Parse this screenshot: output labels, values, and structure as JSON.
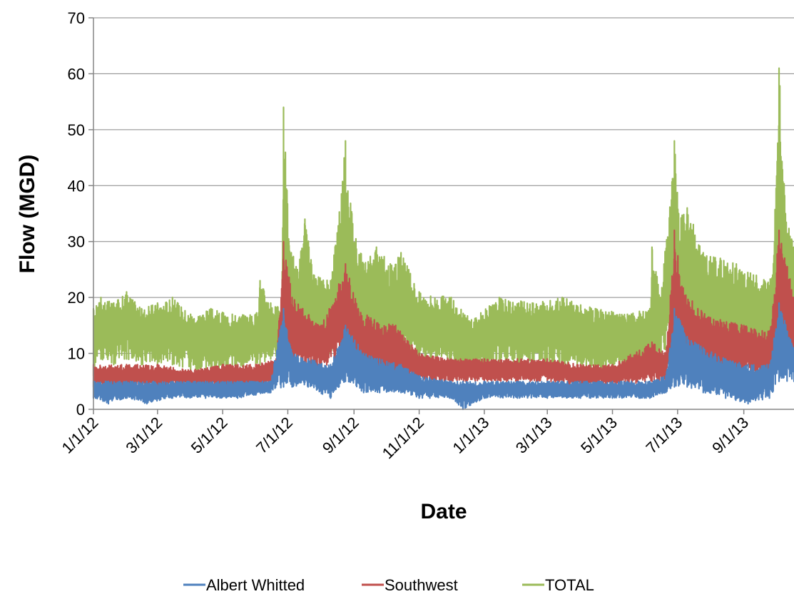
{
  "chart_data": {
    "type": "line",
    "title": "",
    "xlabel": "Date",
    "ylabel": "Flow (MGD)",
    "ylim": [
      0,
      70
    ],
    "xlim": [
      "2012-01-01",
      "2013-10-18"
    ],
    "y_ticks": [
      0,
      10,
      20,
      30,
      40,
      50,
      60,
      70
    ],
    "y_tick_labels": [
      "0",
      "10",
      "20",
      "30",
      "40",
      "50",
      "60",
      "70"
    ],
    "x_tick_dates": [
      "2012-01-01",
      "2012-03-01",
      "2012-05-01",
      "2012-07-01",
      "2012-09-01",
      "2012-11-01",
      "2013-01-01",
      "2013-03-01",
      "2013-05-01",
      "2013-07-01",
      "2013-09-01"
    ],
    "x_tick_labels": [
      "1/1/12",
      "3/1/12",
      "5/1/12",
      "7/1/12",
      "9/1/12",
      "11/1/12",
      "1/1/13",
      "3/1/13",
      "5/1/13",
      "7/1/13",
      "9/1/13"
    ],
    "grid": "horizontal",
    "legend_position": "bottom",
    "series": [
      {
        "name": "TOTAL",
        "color": "#9BBB59",
        "points": [
          [
            "2012-01-01",
            6
          ],
          [
            "2012-01-01",
            18
          ],
          [
            "2012-01-08",
            9
          ],
          [
            "2012-01-08",
            20
          ],
          [
            "2012-01-20",
            8
          ],
          [
            "2012-01-20",
            19
          ],
          [
            "2012-02-01",
            9
          ],
          [
            "2012-02-01",
            21
          ],
          [
            "2012-02-15",
            8
          ],
          [
            "2012-02-15",
            18
          ],
          [
            "2012-03-01",
            8
          ],
          [
            "2012-03-01",
            19
          ],
          [
            "2012-03-15",
            8
          ],
          [
            "2012-03-15",
            20
          ],
          [
            "2012-04-01",
            7
          ],
          [
            "2012-04-01",
            17
          ],
          [
            "2012-04-20",
            7
          ],
          [
            "2012-04-20",
            18
          ],
          [
            "2012-05-10",
            7
          ],
          [
            "2012-05-10",
            17
          ],
          [
            "2012-06-01",
            8
          ],
          [
            "2012-06-01",
            17
          ],
          [
            "2012-06-05",
            8
          ],
          [
            "2012-06-05",
            23
          ],
          [
            "2012-06-15",
            9
          ],
          [
            "2012-06-15",
            19
          ],
          [
            "2012-06-25",
            10
          ],
          [
            "2012-06-25",
            18
          ],
          [
            "2012-06-27",
            14
          ],
          [
            "2012-06-27",
            54
          ],
          [
            "2012-07-02",
            15
          ],
          [
            "2012-07-02",
            30
          ],
          [
            "2012-07-10",
            12
          ],
          [
            "2012-07-10",
            25
          ],
          [
            "2012-07-17",
            13
          ],
          [
            "2012-07-17",
            34
          ],
          [
            "2012-07-25",
            11
          ],
          [
            "2012-07-25",
            24
          ],
          [
            "2012-08-10",
            10
          ],
          [
            "2012-08-10",
            23
          ],
          [
            "2012-08-24",
            14
          ],
          [
            "2012-08-24",
            48
          ],
          [
            "2012-08-30",
            13
          ],
          [
            "2012-08-30",
            35
          ],
          [
            "2012-09-10",
            11
          ],
          [
            "2012-09-10",
            26
          ],
          [
            "2012-09-22",
            10
          ],
          [
            "2012-09-22",
            29
          ],
          [
            "2012-10-05",
            9
          ],
          [
            "2012-10-05",
            26
          ],
          [
            "2012-10-15",
            10
          ],
          [
            "2012-10-15",
            28
          ],
          [
            "2012-11-01",
            8
          ],
          [
            "2012-11-01",
            21
          ],
          [
            "2012-12-01",
            8
          ],
          [
            "2012-12-01",
            20
          ],
          [
            "2012-12-20",
            7
          ],
          [
            "2012-12-20",
            16
          ],
          [
            "2013-01-15",
            8
          ],
          [
            "2013-01-15",
            20
          ],
          [
            "2013-02-15",
            8
          ],
          [
            "2013-02-15",
            19
          ],
          [
            "2013-03-15",
            8
          ],
          [
            "2013-03-15",
            20
          ],
          [
            "2013-04-15",
            7
          ],
          [
            "2013-04-15",
            18
          ],
          [
            "2013-05-15",
            7
          ],
          [
            "2013-05-15",
            17
          ],
          [
            "2013-06-05",
            8
          ],
          [
            "2013-06-05",
            18
          ],
          [
            "2013-06-07",
            9
          ],
          [
            "2013-06-07",
            29
          ],
          [
            "2013-06-15",
            9
          ],
          [
            "2013-06-15",
            20
          ],
          [
            "2013-06-28",
            12
          ],
          [
            "2013-06-28",
            48
          ],
          [
            "2013-07-02",
            13
          ],
          [
            "2013-07-02",
            35
          ],
          [
            "2013-07-10",
            12
          ],
          [
            "2013-07-10",
            36
          ],
          [
            "2013-07-25",
            11
          ],
          [
            "2013-07-25",
            28
          ],
          [
            "2013-08-10",
            10
          ],
          [
            "2013-08-10",
            27
          ],
          [
            "2013-08-25",
            10
          ],
          [
            "2013-08-25",
            26
          ],
          [
            "2013-09-10",
            10
          ],
          [
            "2013-09-10",
            24
          ],
          [
            "2013-09-28",
            11
          ],
          [
            "2013-09-28",
            24
          ],
          [
            "2013-10-04",
            15
          ],
          [
            "2013-10-04",
            61
          ],
          [
            "2013-10-10",
            14
          ],
          [
            "2013-10-10",
            35
          ],
          [
            "2013-10-18",
            13
          ],
          [
            "2013-10-18",
            29
          ]
        ]
      },
      {
        "name": "Southwest",
        "color": "#C0504D",
        "points": [
          [
            "2012-01-01",
            4
          ],
          [
            "2012-01-01",
            8
          ],
          [
            "2012-02-01",
            4
          ],
          [
            "2012-02-01",
            8
          ],
          [
            "2012-03-01",
            4
          ],
          [
            "2012-03-01",
            8
          ],
          [
            "2012-04-01",
            4
          ],
          [
            "2012-04-01",
            7
          ],
          [
            "2012-05-01",
            4
          ],
          [
            "2012-05-01",
            8
          ],
          [
            "2012-06-01",
            4
          ],
          [
            "2012-06-01",
            8
          ],
          [
            "2012-06-20",
            5
          ],
          [
            "2012-06-20",
            9
          ],
          [
            "2012-06-27",
            8
          ],
          [
            "2012-06-27",
            30
          ],
          [
            "2012-07-05",
            8
          ],
          [
            "2012-07-05",
            20
          ],
          [
            "2012-07-15",
            8
          ],
          [
            "2012-07-15",
            18
          ],
          [
            "2012-08-01",
            7
          ],
          [
            "2012-08-01",
            15
          ],
          [
            "2012-08-24",
            9
          ],
          [
            "2012-08-24",
            26
          ],
          [
            "2012-09-05",
            7
          ],
          [
            "2012-09-05",
            18
          ],
          [
            "2012-09-20",
            6
          ],
          [
            "2012-09-20",
            16
          ],
          [
            "2012-10-10",
            6
          ],
          [
            "2012-10-10",
            15
          ],
          [
            "2012-11-01",
            5
          ],
          [
            "2012-11-01",
            10
          ],
          [
            "2012-12-01",
            5
          ],
          [
            "2012-12-01",
            9
          ],
          [
            "2013-01-01",
            5
          ],
          [
            "2013-01-01",
            9
          ],
          [
            "2013-02-01",
            5
          ],
          [
            "2013-02-01",
            9
          ],
          [
            "2013-03-01",
            5
          ],
          [
            "2013-03-01",
            9
          ],
          [
            "2013-04-01",
            4
          ],
          [
            "2013-04-01",
            8
          ],
          [
            "2013-05-01",
            4
          ],
          [
            "2013-05-01",
            8
          ],
          [
            "2013-06-07",
            5
          ],
          [
            "2013-06-07",
            12
          ],
          [
            "2013-06-20",
            5
          ],
          [
            "2013-06-20",
            10
          ],
          [
            "2013-06-28",
            8
          ],
          [
            "2013-06-28",
            32
          ],
          [
            "2013-07-05",
            8
          ],
          [
            "2013-07-05",
            22
          ],
          [
            "2013-07-20",
            7
          ],
          [
            "2013-07-20",
            18
          ],
          [
            "2013-08-10",
            6
          ],
          [
            "2013-08-10",
            16
          ],
          [
            "2013-09-01",
            6
          ],
          [
            "2013-09-01",
            15
          ],
          [
            "2013-09-25",
            6
          ],
          [
            "2013-09-25",
            14
          ],
          [
            "2013-10-04",
            9
          ],
          [
            "2013-10-04",
            32
          ],
          [
            "2013-10-18",
            8
          ],
          [
            "2013-10-18",
            20
          ]
        ]
      },
      {
        "name": "Albert Whitted",
        "color": "#4F81BD",
        "points": [
          [
            "2012-01-01",
            2
          ],
          [
            "2012-01-01",
            5
          ],
          [
            "2012-01-15",
            1
          ],
          [
            "2012-01-15",
            5
          ],
          [
            "2012-02-01",
            2
          ],
          [
            "2012-02-01",
            5
          ],
          [
            "2012-02-20",
            1
          ],
          [
            "2012-02-20",
            5
          ],
          [
            "2012-03-15",
            2
          ],
          [
            "2012-03-15",
            5
          ],
          [
            "2012-04-15",
            2
          ],
          [
            "2012-04-15",
            5
          ],
          [
            "2012-05-15",
            2
          ],
          [
            "2012-05-15",
            5
          ],
          [
            "2012-06-15",
            3
          ],
          [
            "2012-06-15",
            5
          ],
          [
            "2012-06-27",
            4
          ],
          [
            "2012-06-27",
            18
          ],
          [
            "2012-07-05",
            4
          ],
          [
            "2012-07-05",
            10
          ],
          [
            "2012-07-20",
            4
          ],
          [
            "2012-07-20",
            9
          ],
          [
            "2012-08-10",
            2
          ],
          [
            "2012-08-10",
            8
          ],
          [
            "2012-08-24",
            5
          ],
          [
            "2012-08-24",
            15
          ],
          [
            "2012-09-10",
            3
          ],
          [
            "2012-09-10",
            10
          ],
          [
            "2012-09-25",
            3
          ],
          [
            "2012-09-25",
            9
          ],
          [
            "2012-10-15",
            3
          ],
          [
            "2012-10-15",
            8
          ],
          [
            "2012-11-01",
            2
          ],
          [
            "2012-11-01",
            6
          ],
          [
            "2012-12-01",
            2
          ],
          [
            "2012-12-01",
            5
          ],
          [
            "2012-12-12",
            0
          ],
          [
            "2012-12-12",
            5
          ],
          [
            "2013-01-01",
            2
          ],
          [
            "2013-01-01",
            5
          ],
          [
            "2013-02-01",
            2
          ],
          [
            "2013-02-01",
            5
          ],
          [
            "2013-03-01",
            2
          ],
          [
            "2013-03-01",
            5
          ],
          [
            "2013-04-01",
            2
          ],
          [
            "2013-04-01",
            5
          ],
          [
            "2013-05-01",
            2
          ],
          [
            "2013-05-01",
            5
          ],
          [
            "2013-06-05",
            2
          ],
          [
            "2013-06-05",
            5
          ],
          [
            "2013-06-20",
            3
          ],
          [
            "2013-06-20",
            6
          ],
          [
            "2013-06-28",
            4
          ],
          [
            "2013-06-28",
            18
          ],
          [
            "2013-07-10",
            4
          ],
          [
            "2013-07-10",
            13
          ],
          [
            "2013-07-25",
            3
          ],
          [
            "2013-07-25",
            11
          ],
          [
            "2013-08-15",
            2
          ],
          [
            "2013-08-15",
            9
          ],
          [
            "2013-09-05",
            1
          ],
          [
            "2013-09-05",
            8
          ],
          [
            "2013-09-25",
            2
          ],
          [
            "2013-09-25",
            8
          ],
          [
            "2013-10-04",
            5
          ],
          [
            "2013-10-04",
            19
          ],
          [
            "2013-10-18",
            5
          ],
          [
            "2013-10-18",
            11
          ]
        ]
      }
    ]
  }
}
